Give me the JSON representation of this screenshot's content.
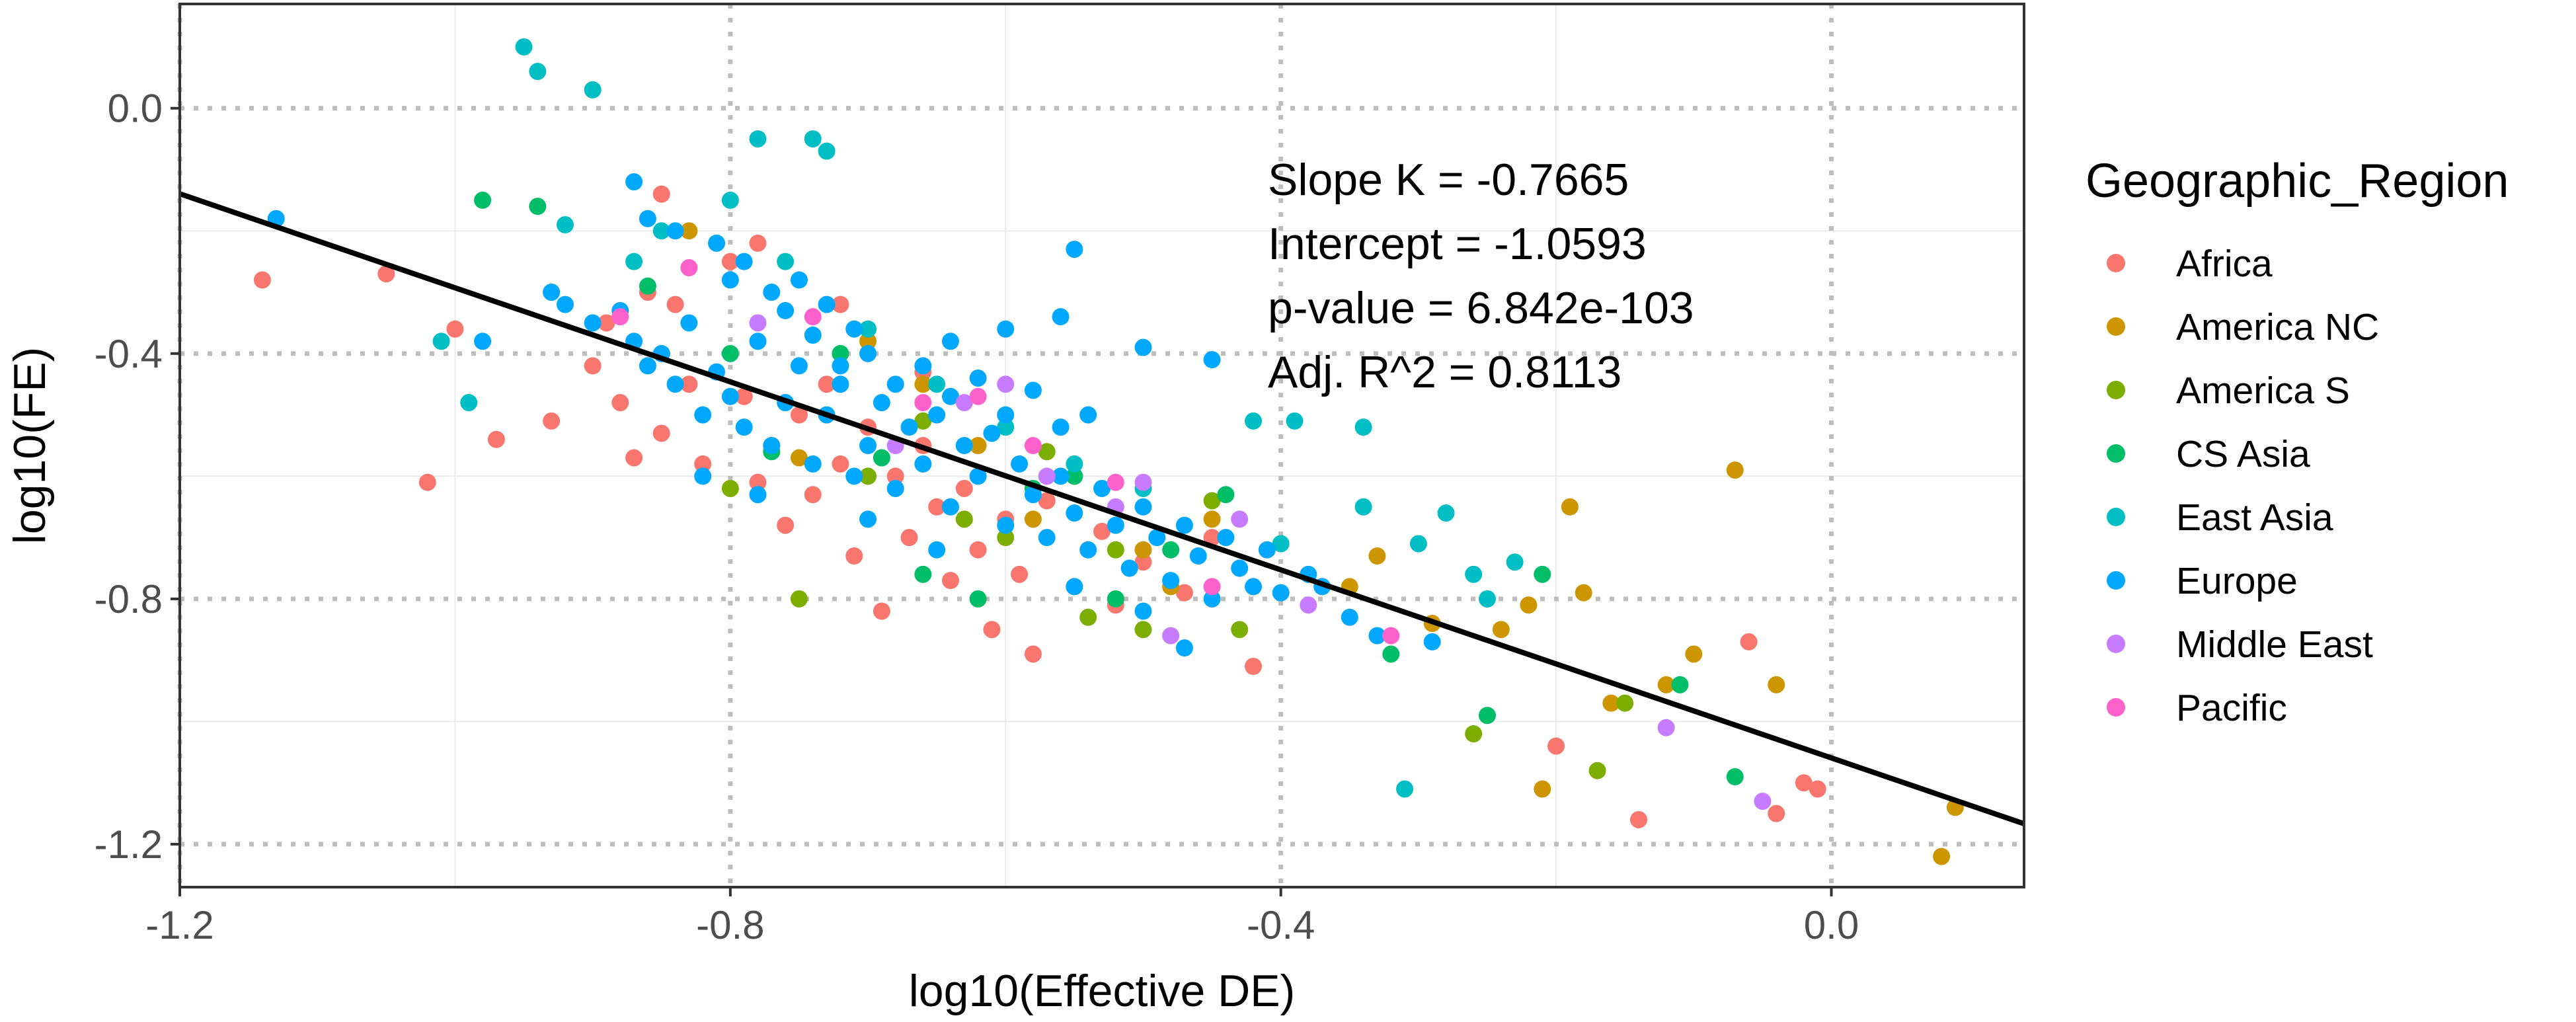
{
  "chart_data": {
    "type": "scatter",
    "xlabel": "log10(Effective DE)",
    "ylabel": "log10(FE)",
    "xlim": [
      -1.2,
      0.14
    ],
    "ylim": [
      -1.27,
      0.17
    ],
    "x_ticks": [
      -1.2,
      -0.8,
      -0.4,
      0.0
    ],
    "x_tick_labels": [
      "-1.2",
      "-0.8",
      "-0.4",
      "0.0"
    ],
    "y_ticks": [
      0.0,
      -0.4,
      -0.8,
      -1.2
    ],
    "y_tick_labels": [
      "0.0",
      "-0.4",
      "-0.8",
      "-1.2"
    ],
    "grid": true,
    "fit_line": {
      "slope": -0.7665,
      "intercept": -1.0593
    },
    "annotations": [
      "Slope K = -0.7665",
      "Intercept = -1.0593",
      "p-value = 6.842e-103",
      "Adj. R^2 = 0.8113"
    ],
    "legend": {
      "title": "Geographic_Region",
      "placement": "right"
    },
    "series": [
      {
        "name": "Africa",
        "color": "#F8766D",
        "points": [
          [
            -1.14,
            -0.28
          ],
          [
            -1.05,
            -0.27
          ],
          [
            -1.0,
            -0.36
          ],
          [
            -1.02,
            -0.61
          ],
          [
            -0.97,
            -0.54
          ],
          [
            -0.93,
            -0.51
          ],
          [
            -0.9,
            -0.42
          ],
          [
            -0.89,
            -0.35
          ],
          [
            -0.88,
            -0.48
          ],
          [
            -0.87,
            -0.57
          ],
          [
            -0.86,
            -0.3
          ],
          [
            -0.85,
            -0.53
          ],
          [
            -0.84,
            -0.32
          ],
          [
            -0.83,
            -0.45
          ],
          [
            -0.82,
            -0.58
          ],
          [
            -0.8,
            -0.25
          ],
          [
            -0.79,
            -0.47
          ],
          [
            -0.78,
            -0.61
          ],
          [
            -0.77,
            -0.55
          ],
          [
            -0.76,
            -0.68
          ],
          [
            -0.75,
            -0.5
          ],
          [
            -0.74,
            -0.63
          ],
          [
            -0.73,
            -0.45
          ],
          [
            -0.72,
            -0.58
          ],
          [
            -0.71,
            -0.73
          ],
          [
            -0.7,
            -0.52
          ],
          [
            -0.69,
            -0.82
          ],
          [
            -0.68,
            -0.6
          ],
          [
            -0.67,
            -0.7
          ],
          [
            -0.66,
            -0.55
          ],
          [
            -0.65,
            -0.65
          ],
          [
            -0.64,
            -0.77
          ],
          [
            -0.63,
            -0.62
          ],
          [
            -0.62,
            -0.72
          ],
          [
            -0.61,
            -0.85
          ],
          [
            -0.6,
            -0.67
          ],
          [
            -0.59,
            -0.76
          ],
          [
            -0.58,
            -0.89
          ],
          [
            -0.57,
            -0.64
          ],
          [
            -0.55,
            -0.78
          ],
          [
            -0.53,
            -0.69
          ],
          [
            -0.52,
            -0.81
          ],
          [
            -0.5,
            -0.74
          ],
          [
            -0.47,
            -0.79
          ],
          [
            -0.45,
            -0.7
          ],
          [
            -0.42,
            -0.91
          ],
          [
            -0.85,
            -0.14
          ],
          [
            -0.78,
            -0.22
          ],
          [
            -0.72,
            -0.32
          ],
          [
            -0.66,
            -0.43
          ],
          [
            -0.2,
            -1.04
          ],
          [
            -0.14,
            -1.16
          ],
          [
            -0.06,
            -0.87
          ],
          [
            -0.04,
            -1.15
          ],
          [
            -0.02,
            -1.1
          ],
          [
            -0.01,
            -1.11
          ]
        ]
      },
      {
        "name": "America NC",
        "color": "#CD9600",
        "points": [
          [
            -0.83,
            -0.2
          ],
          [
            -0.75,
            -0.57
          ],
          [
            -0.7,
            -0.38
          ],
          [
            -0.66,
            -0.45
          ],
          [
            -0.62,
            -0.55
          ],
          [
            -0.58,
            -0.67
          ],
          [
            -0.55,
            -0.6
          ],
          [
            -0.5,
            -0.72
          ],
          [
            -0.48,
            -0.78
          ],
          [
            -0.45,
            -0.67
          ],
          [
            -0.35,
            -0.78
          ],
          [
            -0.33,
            -0.73
          ],
          [
            -0.29,
            -0.84
          ],
          [
            -0.24,
            -0.85
          ],
          [
            -0.22,
            -0.81
          ],
          [
            -0.21,
            -1.11
          ],
          [
            -0.19,
            -0.65
          ],
          [
            -0.18,
            -0.79
          ],
          [
            -0.16,
            -0.97
          ],
          [
            -0.12,
            -0.94
          ],
          [
            -0.1,
            -0.89
          ],
          [
            -0.07,
            -0.59
          ],
          [
            -0.04,
            -0.94
          ],
          [
            0.08,
            -1.22
          ],
          [
            0.09,
            -1.14
          ]
        ]
      },
      {
        "name": "America S",
        "color": "#7CAE00",
        "points": [
          [
            -0.8,
            -0.62
          ],
          [
            -0.75,
            -0.8
          ],
          [
            -0.7,
            -0.6
          ],
          [
            -0.66,
            -0.51
          ],
          [
            -0.63,
            -0.67
          ],
          [
            -0.6,
            -0.7
          ],
          [
            -0.57,
            -0.56
          ],
          [
            -0.54,
            -0.83
          ],
          [
            -0.52,
            -0.72
          ],
          [
            -0.5,
            -0.85
          ],
          [
            -0.45,
            -0.64
          ],
          [
            -0.43,
            -0.85
          ],
          [
            -0.26,
            -1.02
          ],
          [
            -0.17,
            -1.08
          ],
          [
            -0.15,
            -0.97
          ]
        ]
      },
      {
        "name": "CS Asia",
        "color": "#00BE67",
        "points": [
          [
            -0.98,
            -0.15
          ],
          [
            -0.94,
            -0.16
          ],
          [
            -0.86,
            -0.29
          ],
          [
            -0.8,
            -0.4
          ],
          [
            -0.77,
            -0.56
          ],
          [
            -0.72,
            -0.4
          ],
          [
            -0.69,
            -0.57
          ],
          [
            -0.66,
            -0.76
          ],
          [
            -0.62,
            -0.8
          ],
          [
            -0.58,
            -0.62
          ],
          [
            -0.55,
            -0.6
          ],
          [
            -0.52,
            -0.8
          ],
          [
            -0.48,
            -0.72
          ],
          [
            -0.44,
            -0.63
          ],
          [
            -0.32,
            -0.89
          ],
          [
            -0.25,
            -0.99
          ],
          [
            -0.21,
            -0.76
          ],
          [
            -0.11,
            -0.94
          ],
          [
            -0.07,
            -1.09
          ]
        ]
      },
      {
        "name": "East Asia",
        "color": "#00BFC4",
        "points": [
          [
            -0.95,
            0.1
          ],
          [
            -0.94,
            0.06
          ],
          [
            -0.9,
            0.03
          ],
          [
            -0.74,
            -0.05
          ],
          [
            -0.73,
            -0.07
          ],
          [
            -0.78,
            -0.05
          ],
          [
            -1.01,
            -0.38
          ],
          [
            -0.99,
            -0.48
          ],
          [
            -0.93,
            -0.3
          ],
          [
            -0.92,
            -0.19
          ],
          [
            -0.87,
            -0.25
          ],
          [
            -0.85,
            -0.2
          ],
          [
            -0.8,
            -0.15
          ],
          [
            -0.76,
            -0.25
          ],
          [
            -0.7,
            -0.36
          ],
          [
            -0.65,
            -0.45
          ],
          [
            -0.6,
            -0.52
          ],
          [
            -0.55,
            -0.58
          ],
          [
            -0.5,
            -0.62
          ],
          [
            -0.42,
            -0.51
          ],
          [
            -0.39,
            -0.51
          ],
          [
            -0.34,
            -0.52
          ],
          [
            -0.34,
            -0.65
          ],
          [
            -0.3,
            -0.71
          ],
          [
            -0.28,
            -0.66
          ],
          [
            -0.26,
            -0.76
          ],
          [
            -0.25,
            -0.8
          ],
          [
            -0.23,
            -0.74
          ],
          [
            -0.31,
            -1.11
          ],
          [
            -0.4,
            -0.71
          ]
        ]
      },
      {
        "name": "Europe",
        "color": "#00A9FF",
        "points": [
          [
            -1.13,
            -0.18
          ],
          [
            -0.93,
            -0.3
          ],
          [
            -0.92,
            -0.32
          ],
          [
            -0.9,
            -0.35
          ],
          [
            -0.88,
            -0.33
          ],
          [
            -0.87,
            -0.38
          ],
          [
            -0.86,
            -0.42
          ],
          [
            -0.85,
            -0.4
          ],
          [
            -0.84,
            -0.45
          ],
          [
            -0.83,
            -0.35
          ],
          [
            -0.82,
            -0.5
          ],
          [
            -0.81,
            -0.43
          ],
          [
            -0.8,
            -0.47
          ],
          [
            -0.79,
            -0.52
          ],
          [
            -0.78,
            -0.38
          ],
          [
            -0.77,
            -0.55
          ],
          [
            -0.76,
            -0.48
          ],
          [
            -0.75,
            -0.42
          ],
          [
            -0.74,
            -0.58
          ],
          [
            -0.73,
            -0.5
          ],
          [
            -0.72,
            -0.45
          ],
          [
            -0.71,
            -0.6
          ],
          [
            -0.7,
            -0.55
          ],
          [
            -0.69,
            -0.48
          ],
          [
            -0.68,
            -0.62
          ],
          [
            -0.67,
            -0.52
          ],
          [
            -0.66,
            -0.58
          ],
          [
            -0.65,
            -0.5
          ],
          [
            -0.64,
            -0.65
          ],
          [
            -0.63,
            -0.55
          ],
          [
            -0.62,
            -0.6
          ],
          [
            -0.61,
            -0.53
          ],
          [
            -0.6,
            -0.68
          ],
          [
            -0.59,
            -0.58
          ],
          [
            -0.58,
            -0.63
          ],
          [
            -0.57,
            -0.7
          ],
          [
            -0.56,
            -0.6
          ],
          [
            -0.55,
            -0.66
          ],
          [
            -0.54,
            -0.72
          ],
          [
            -0.53,
            -0.62
          ],
          [
            -0.52,
            -0.68
          ],
          [
            -0.51,
            -0.75
          ],
          [
            -0.5,
            -0.65
          ],
          [
            -0.49,
            -0.7
          ],
          [
            -0.48,
            -0.77
          ],
          [
            -0.47,
            -0.68
          ],
          [
            -0.46,
            -0.73
          ],
          [
            -0.45,
            -0.8
          ],
          [
            -0.44,
            -0.7
          ],
          [
            -0.43,
            -0.75
          ],
          [
            -0.42,
            -0.78
          ],
          [
            -0.41,
            -0.72
          ],
          [
            -0.4,
            -0.79
          ],
          [
            -0.38,
            -0.76
          ],
          [
            -0.87,
            -0.12
          ],
          [
            -0.86,
            -0.18
          ],
          [
            -0.84,
            -0.2
          ],
          [
            -0.81,
            -0.22
          ],
          [
            -0.8,
            -0.28
          ],
          [
            -0.79,
            -0.25
          ],
          [
            -0.77,
            -0.3
          ],
          [
            -0.76,
            -0.33
          ],
          [
            -0.75,
            -0.28
          ],
          [
            -0.74,
            -0.37
          ],
          [
            -0.73,
            -0.32
          ],
          [
            -0.72,
            -0.42
          ],
          [
            -0.71,
            -0.36
          ],
          [
            -0.7,
            -0.4
          ],
          [
            -0.68,
            -0.45
          ],
          [
            -0.66,
            -0.42
          ],
          [
            -0.64,
            -0.47
          ],
          [
            -0.62,
            -0.44
          ],
          [
            -0.6,
            -0.5
          ],
          [
            -0.58,
            -0.46
          ],
          [
            -0.56,
            -0.52
          ],
          [
            -0.54,
            -0.5
          ],
          [
            -0.55,
            -0.23
          ],
          [
            -0.5,
            -0.39
          ],
          [
            -0.45,
            -0.41
          ],
          [
            -0.56,
            -0.34
          ],
          [
            -0.6,
            -0.36
          ],
          [
            -0.64,
            -0.38
          ],
          [
            -0.82,
            -0.6
          ],
          [
            -0.78,
            -0.63
          ],
          [
            -0.7,
            -0.67
          ],
          [
            -0.65,
            -0.72
          ],
          [
            -0.55,
            -0.78
          ],
          [
            -0.5,
            -0.82
          ],
          [
            -0.47,
            -0.88
          ],
          [
            -0.37,
            -0.78
          ],
          [
            -0.35,
            -0.83
          ],
          [
            -0.33,
            -0.86
          ],
          [
            -0.29,
            -0.87
          ],
          [
            -0.98,
            -0.38
          ]
        ]
      },
      {
        "name": "Middle East",
        "color": "#C77CFF",
        "points": [
          [
            -0.78,
            -0.35
          ],
          [
            -0.68,
            -0.55
          ],
          [
            -0.63,
            -0.48
          ],
          [
            -0.6,
            -0.45
          ],
          [
            -0.57,
            -0.6
          ],
          [
            -0.52,
            -0.65
          ],
          [
            -0.5,
            -0.61
          ],
          [
            -0.48,
            -0.86
          ],
          [
            -0.43,
            -0.67
          ],
          [
            -0.38,
            -0.81
          ],
          [
            -0.12,
            -1.01
          ],
          [
            -0.05,
            -1.13
          ]
        ]
      },
      {
        "name": "Pacific",
        "color": "#FF61CC",
        "points": [
          [
            -0.88,
            -0.34
          ],
          [
            -0.83,
            -0.26
          ],
          [
            -0.74,
            -0.34
          ],
          [
            -0.66,
            -0.48
          ],
          [
            -0.62,
            -0.47
          ],
          [
            -0.58,
            -0.55
          ],
          [
            -0.52,
            -0.61
          ],
          [
            -0.45,
            -0.78
          ],
          [
            -0.32,
            -0.86
          ]
        ]
      }
    ]
  }
}
